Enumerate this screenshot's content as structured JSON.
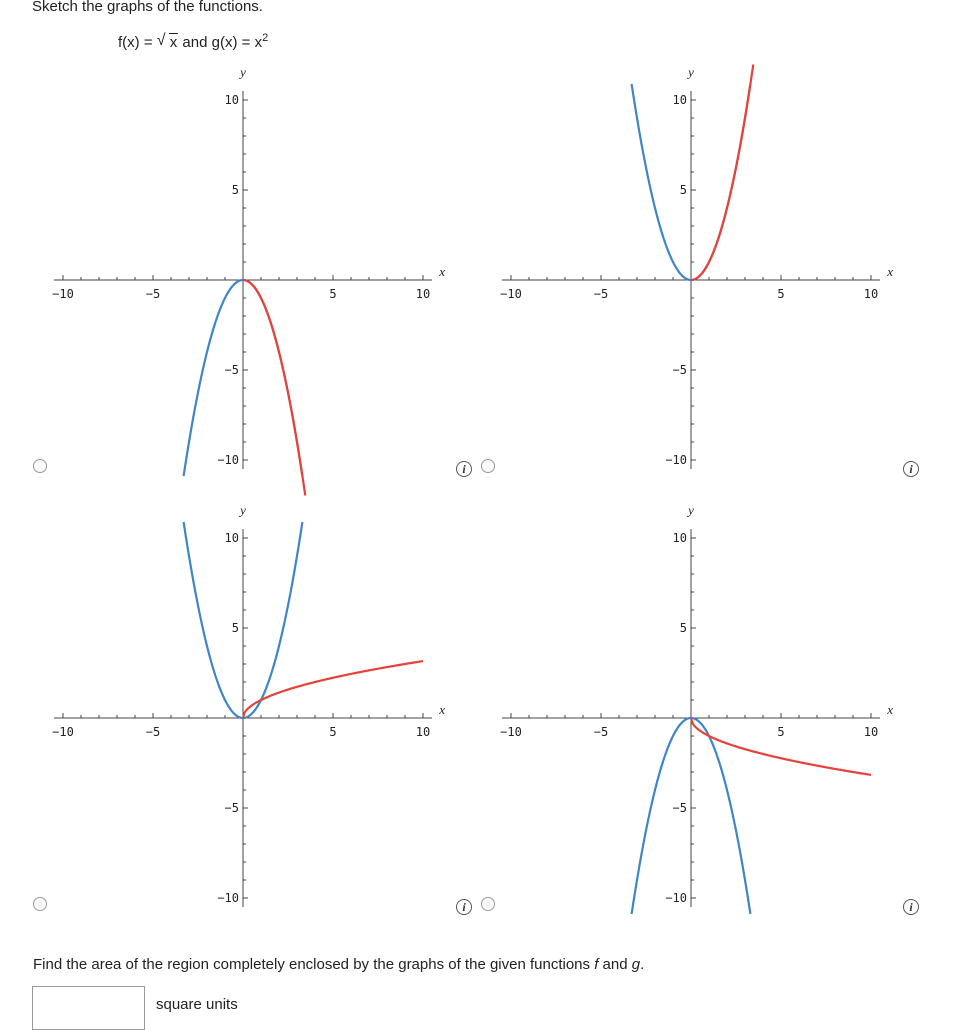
{
  "instruction": "Sketch the graphs of the functions.",
  "formula": {
    "f_lhs": "f(x) = ",
    "f_radicand": "x",
    "connector": " and ",
    "g_lhs": "g(x) = x",
    "g_exp": "2"
  },
  "axis": {
    "x_label": "x",
    "y_label": "y",
    "x_tick_labels": [
      "−10",
      "−5",
      "5",
      "10"
    ],
    "y_tick_labels_pos": [
      "10",
      "5"
    ],
    "y_tick_labels_neg": [
      "−5",
      "−10"
    ]
  },
  "colors": {
    "blue": "#3f86c6",
    "red": "#e8413a"
  },
  "chart_data": [
    {
      "type": "line",
      "xlim": [
        -11,
        11
      ],
      "ylim": [
        -10.5,
        10.5
      ],
      "series": [
        {
          "color": "blue",
          "expr": "-x^2",
          "domain": [
            -3.3,
            3.3
          ]
        },
        {
          "color": "red",
          "expr": "-x^2 (x>=0)",
          "domain": [
            0,
            3.46
          ]
        }
      ]
    },
    {
      "type": "line",
      "xlim": [
        -11,
        11
      ],
      "ylim": [
        -10.5,
        10.5
      ],
      "series": [
        {
          "color": "blue",
          "expr": "x^2",
          "domain": [
            -3.3,
            3.3
          ]
        },
        {
          "color": "red",
          "expr": "x^2 (x>=0)",
          "domain": [
            0,
            3.46
          ]
        }
      ]
    },
    {
      "type": "line",
      "xlim": [
        -11,
        11
      ],
      "ylim": [
        -10.5,
        10.5
      ],
      "series": [
        {
          "color": "blue",
          "expr": "x^2",
          "domain": [
            -3.3,
            3.3
          ]
        },
        {
          "color": "red",
          "expr": "sqrt(x)",
          "domain": [
            0,
            10
          ]
        }
      ]
    },
    {
      "type": "line",
      "xlim": [
        -11,
        11
      ],
      "ylim": [
        -10.5,
        10.5
      ],
      "series": [
        {
          "color": "blue",
          "expr": "-x^2",
          "domain": [
            -3.3,
            3.3
          ]
        },
        {
          "color": "red",
          "expr": "-sqrt(x)",
          "domain": [
            0,
            10
          ]
        }
      ]
    }
  ],
  "question": {
    "prefix": "Find the area of the region completely enclosed by the graphs of the given functions ",
    "f": "f",
    "mid": " and ",
    "g": "g",
    "suffix": ".",
    "answer_value": "",
    "units": "square units"
  }
}
